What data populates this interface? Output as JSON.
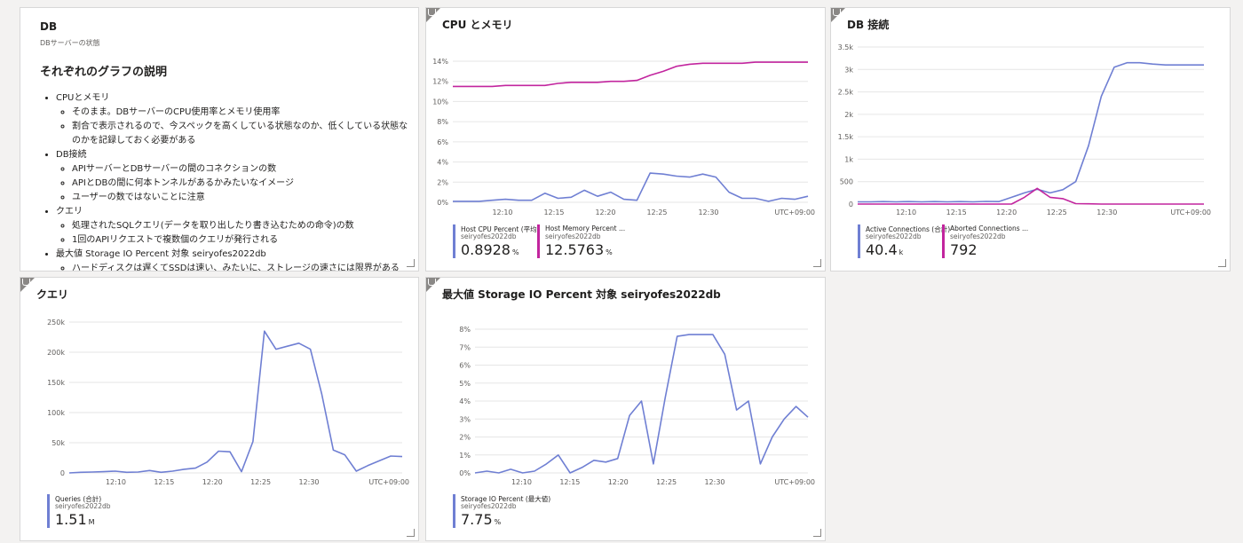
{
  "db_tile": {
    "title": "DB",
    "subtitle": "DBサーバーの状態",
    "heading": "それぞれのグラフの説明",
    "items": [
      {
        "text": "CPUとメモリ",
        "sub": [
          "そのまま。DBサーバーのCPU使用率とメモリ使用率",
          "割合で表示されるので、今スペックを高くしている状態なのか、低くしている状態なのかを記録しておく必要がある"
        ]
      },
      {
        "text": "DB接続",
        "sub": [
          "APIサーバーとDBサーバーの間のコネクションの数",
          "APIとDBの間に何本トンネルがあるかみたいなイメージ",
          "ユーザーの数ではないことに注意"
        ]
      },
      {
        "text": "クエリ",
        "sub": [
          "処理されたSQLクエリ(データを取り出したり書き込むための命令)の数",
          "1回のAPIリクエストで複数個のクエリが発行される"
        ]
      },
      {
        "text": "最大値 Storage IO Percent 対象 seiryofes2022db",
        "sub": [
          "ハードディスクは遅くてSSDは速い、みたいに、ストレージの速さには限界がある"
        ]
      }
    ]
  },
  "chart_data": [
    {
      "id": "cpu",
      "type": "line",
      "title": "CPU とメモリ",
      "timezone": "UTC+09:00",
      "x_ticks": [
        "12:10",
        "12:15",
        "12:20",
        "12:25",
        "12:30"
      ],
      "y_ticks": [
        "0%",
        "2%",
        "4%",
        "6%",
        "8%",
        "10%",
        "12%",
        "14%"
      ],
      "ylim": [
        0,
        14
      ],
      "series": [
        {
          "name": "Host CPU Percent (平均)",
          "color": "#6f7fd3",
          "values": [
            0.1,
            0.1,
            0.1,
            0.2,
            0.3,
            0.2,
            0.2,
            0.9,
            0.4,
            0.5,
            1.2,
            0.6,
            1.0,
            0.3,
            0.2,
            2.9,
            2.8,
            2.6,
            2.5,
            2.8,
            2.5,
            1.0,
            0.4,
            0.4,
            0.1,
            0.4,
            0.3,
            0.6
          ]
        },
        {
          "name": "Host Memory Percent ...",
          "color": "#c2259e",
          "values": [
            11.5,
            11.5,
            11.5,
            11.5,
            11.6,
            11.6,
            11.6,
            11.6,
            11.8,
            11.9,
            11.9,
            11.9,
            12.0,
            12.0,
            12.1,
            12.6,
            13.0,
            13.5,
            13.7,
            13.8,
            13.8,
            13.8,
            13.8,
            13.9,
            13.9,
            13.9,
            13.9,
            13.9
          ]
        }
      ],
      "legend": [
        {
          "name": "Host CPU Percent (平均)",
          "resource": "seiryofes2022db",
          "value": "0.8928",
          "unit": "%",
          "color": "#6f7fd3"
        },
        {
          "name": "Host Memory Percent ...",
          "resource": "seiryofes2022db",
          "value": "12.5763",
          "unit": "%",
          "color": "#c2259e"
        }
      ]
    },
    {
      "id": "conn",
      "type": "line",
      "title": "DB 接続",
      "timezone": "UTC+09:00",
      "x_ticks": [
        "12:10",
        "12:15",
        "12:20",
        "12:25",
        "12:30"
      ],
      "y_ticks": [
        "0",
        "500",
        "1k",
        "1.5k",
        "2k",
        "2.5k",
        "3k",
        "3.5k"
      ],
      "ylim": [
        0,
        3500
      ],
      "series": [
        {
          "name": "Active Connections (合計)",
          "color": "#6f7fd3",
          "values": [
            50,
            50,
            55,
            50,
            55,
            50,
            55,
            50,
            55,
            50,
            60,
            55,
            150,
            250,
            330,
            250,
            320,
            500,
            1300,
            2400,
            3050,
            3150,
            3150,
            3120,
            3100,
            3100,
            3100,
            3100
          ]
        },
        {
          "name": "Aborted Connections ...",
          "color": "#c2259e",
          "values": [
            0,
            0,
            0,
            0,
            0,
            0,
            0,
            0,
            0,
            0,
            0,
            0,
            0,
            150,
            350,
            150,
            120,
            10,
            5,
            0,
            0,
            0,
            0,
            0,
            0,
            0,
            0,
            0
          ]
        }
      ],
      "legend": [
        {
          "name": "Active Connections (合計)",
          "resource": "seiryofes2022db",
          "value": "40.4",
          "unit": "k",
          "color": "#6f7fd3"
        },
        {
          "name": "Aborted Connections ...",
          "resource": "seiryofes2022db",
          "value": "792",
          "unit": "",
          "color": "#c2259e"
        }
      ]
    },
    {
      "id": "query",
      "type": "line",
      "title": "クエリ",
      "timezone": "UTC+09:00",
      "x_ticks": [
        "12:10",
        "12:15",
        "12:20",
        "12:25",
        "12:30"
      ],
      "y_ticks": [
        "0",
        "50k",
        "100k",
        "150k",
        "200k",
        "250k"
      ],
      "ylim": [
        0,
        250000
      ],
      "series": [
        {
          "name": "Queries (合計)",
          "color": "#6f7fd3",
          "values": [
            0,
            1000,
            1500,
            2000,
            3000,
            1000,
            1500,
            4000,
            1000,
            3000,
            6000,
            8000,
            18000,
            36000,
            35000,
            2000,
            52000,
            235000,
            205000,
            210000,
            215000,
            205000,
            130000,
            38000,
            30000,
            3000,
            12000,
            20000,
            28000,
            27000
          ]
        }
      ],
      "legend": [
        {
          "name": "Queries (合計)",
          "resource": "seiryofes2022db",
          "value": "1.51",
          "unit": "M",
          "color": "#6f7fd3"
        }
      ]
    },
    {
      "id": "storage",
      "type": "line",
      "title": "最大値 Storage IO Percent 対象 seiryofes2022db",
      "timezone": "UTC+09:00",
      "x_ticks": [
        "12:10",
        "12:15",
        "12:20",
        "12:25",
        "12:30"
      ],
      "y_ticks": [
        "0%",
        "1%",
        "2%",
        "3%",
        "4%",
        "5%",
        "6%",
        "7%",
        "8%"
      ],
      "ylim": [
        0,
        8
      ],
      "series": [
        {
          "name": "Storage IO Percent (最大値)",
          "color": "#6f7fd3",
          "values": [
            0.0,
            0.1,
            0.0,
            0.2,
            0.0,
            0.1,
            0.5,
            1.0,
            0.0,
            0.3,
            0.7,
            0.6,
            0.8,
            3.2,
            4.0,
            0.5,
            4.2,
            7.6,
            7.7,
            7.7,
            7.7,
            6.6,
            3.5,
            4.0,
            0.5,
            2.0,
            3.0,
            3.7,
            3.1
          ]
        }
      ],
      "legend": [
        {
          "name": "Storage IO Percent (最大値)",
          "resource": "seiryofes2022db",
          "value": "7.75",
          "unit": "%",
          "color": "#6f7fd3"
        }
      ]
    }
  ]
}
